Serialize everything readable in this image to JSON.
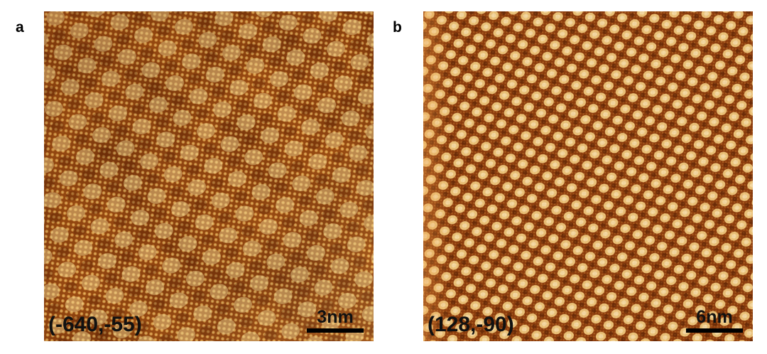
{
  "panels": [
    {
      "letter": "a",
      "coordinates": "(-640,-55)",
      "scale_bar_label": "3nm"
    },
    {
      "letter": "b",
      "coordinates": "(128,-90)",
      "scale_bar_label": "6nm"
    }
  ],
  "colors": {
    "dark": "#6e2a05",
    "mid": "#b0561a",
    "bright": "#f6d684"
  }
}
